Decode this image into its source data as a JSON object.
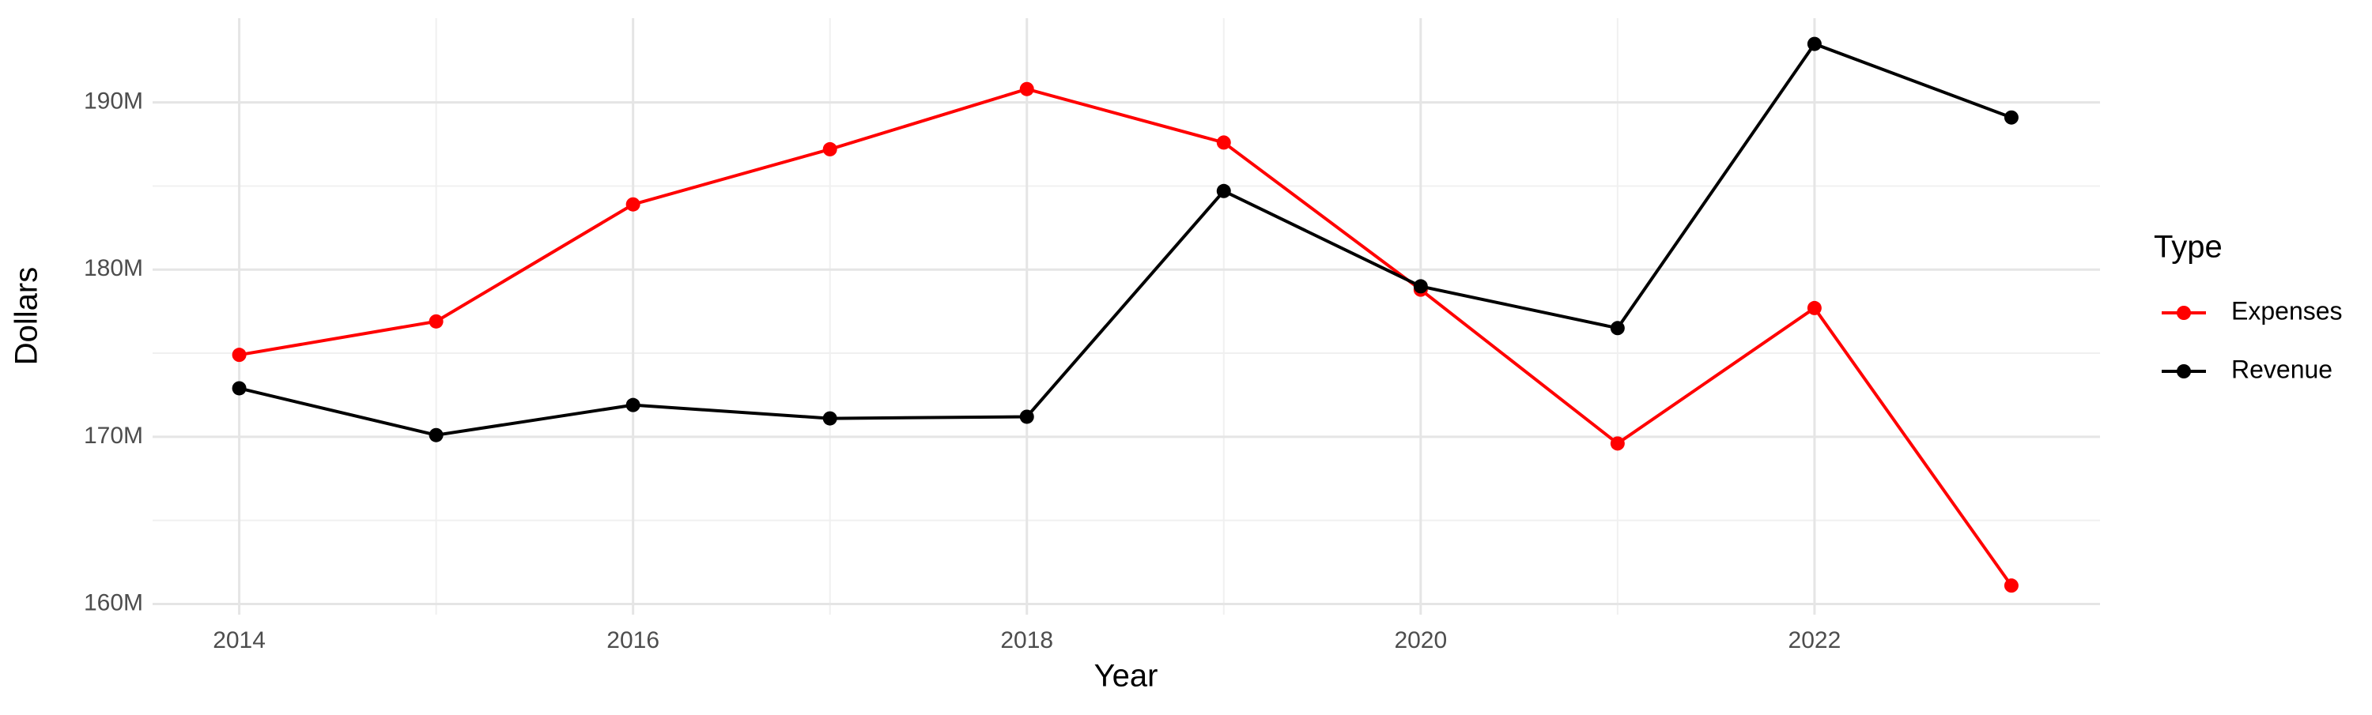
{
  "chart_data": {
    "type": "line",
    "x_label": "Year",
    "y_label": "Dollars",
    "legend_title": "Type",
    "x": [
      2014,
      2015,
      2016,
      2017,
      2018,
      2019,
      2020,
      2021,
      2022,
      2023
    ],
    "series": [
      {
        "name": "Expenses",
        "color": "#ff0000",
        "values": [
          174900000,
          176900000,
          183900000,
          187200000,
          190800000,
          187600000,
          178800000,
          169600000,
          177700000,
          161100000
        ]
      },
      {
        "name": "Revenue",
        "color": "#000000",
        "values": [
          172900000,
          170100000,
          171900000,
          171100000,
          171200000,
          184700000,
          179000000,
          176500000,
          193500000,
          189100000
        ]
      }
    ],
    "xlim": [
      2013.56,
      2023.45
    ],
    "ylim": [
      159360000,
      195040000
    ],
    "xticks": [
      2014,
      2016,
      2018,
      2020,
      2022
    ],
    "yticks": [
      {
        "value": 160000000,
        "label": "160M"
      },
      {
        "value": 170000000,
        "label": "170M"
      },
      {
        "value": 180000000,
        "label": "180M"
      },
      {
        "value": 190000000,
        "label": "190M"
      }
    ],
    "grid": true,
    "legend": "right"
  }
}
